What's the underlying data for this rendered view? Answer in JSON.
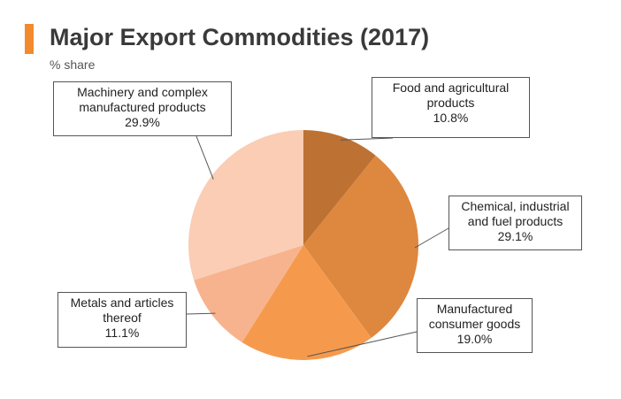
{
  "header": {
    "title": "Major Export Commodities (2017)",
    "subtitle": "% share",
    "accent_color": "#f28a2e"
  },
  "chart_data": {
    "type": "pie",
    "title": "Major Export Commodities (2017)",
    "subtitle": "% share",
    "start_angle": "12 o'clock",
    "direction": "clockwise",
    "slices": [
      {
        "name_lines": [
          "Food and agricultural",
          "products"
        ],
        "value": 10.8,
        "value_label": "10.8%",
        "color": "#bd7133"
      },
      {
        "name_lines": [
          "Chemical, industrial",
          "and fuel products"
        ],
        "value": 29.1,
        "value_label": "29.1%",
        "color": "#de873e"
      },
      {
        "name_lines": [
          "Manufactured",
          "consumer goods"
        ],
        "value": 19.0,
        "value_label": "19.0%",
        "color": "#f59a4c"
      },
      {
        "name_lines": [
          "Metals and articles",
          "thereof"
        ],
        "value": 11.1,
        "value_label": "11.1%",
        "color": "#f7b38e"
      },
      {
        "name_lines": [
          "Machinery and complex",
          "manufactured products"
        ],
        "value": 29.9,
        "value_label": "29.9%",
        "color": "#facdb4"
      }
    ]
  }
}
